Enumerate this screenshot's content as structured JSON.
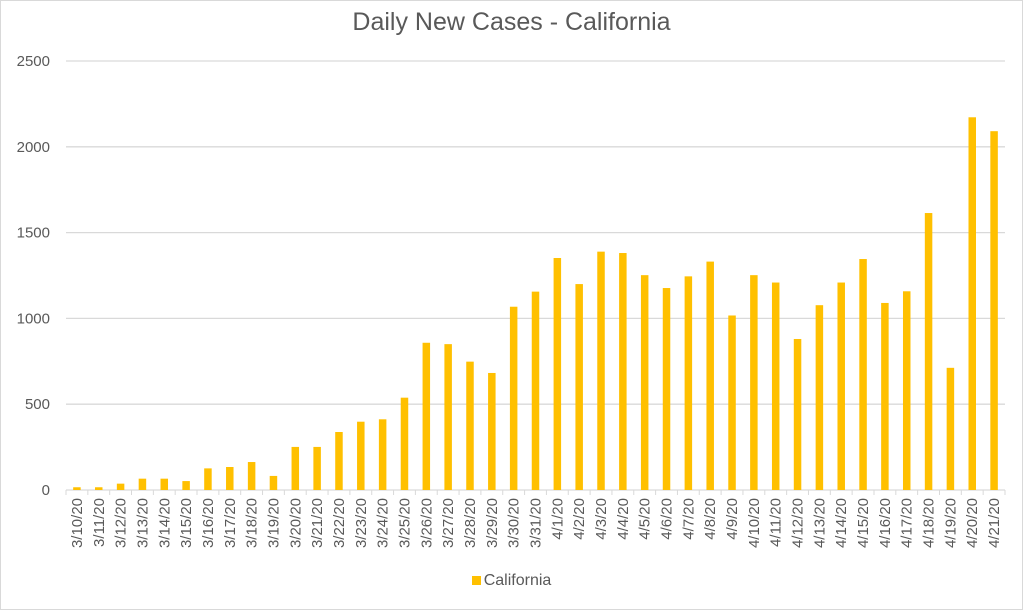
{
  "chart_data": {
    "type": "bar",
    "title": "Daily New Cases - California",
    "xlabel": "",
    "ylabel": "",
    "ylim": [
      0,
      2500
    ],
    "yticks": [
      0,
      500,
      1000,
      1500,
      2000,
      2500
    ],
    "grid": true,
    "legend_position": "bottom",
    "color": "#ffc000",
    "categories": [
      "3/10/20",
      "3/11/20",
      "3/12/20",
      "3/13/20",
      "3/14/20",
      "3/15/20",
      "3/16/20",
      "3/17/20",
      "3/18/20",
      "3/19/20",
      "3/20/20",
      "3/21/20",
      "3/22/20",
      "3/23/20",
      "3/24/20",
      "3/25/20",
      "3/26/20",
      "3/27/20",
      "3/28/20",
      "3/29/20",
      "3/30/20",
      "3/31/20",
      "4/1/20",
      "4/2/20",
      "4/3/20",
      "4/4/20",
      "4/5/20",
      "4/6/20",
      "4/7/20",
      "4/8/20",
      "4/9/20",
      "4/10/20",
      "4/11/20",
      "4/12/20",
      "4/13/20",
      "4/14/20",
      "4/15/20",
      "4/16/20",
      "4/17/20",
      "4/18/20",
      "4/19/20",
      "4/20/20",
      "4/21/20"
    ],
    "series": [
      {
        "name": "California",
        "values": [
          16,
          16,
          37,
          66,
          66,
          52,
          126,
          134,
          163,
          82,
          251,
          251,
          338,
          398,
          412,
          538,
          858,
          850,
          748,
          682,
          1068,
          1156,
          1352,
          1200,
          1389,
          1381,
          1252,
          1177,
          1245,
          1331,
          1017,
          1252,
          1209,
          880,
          1077,
          1209,
          1346,
          1090,
          1158,
          1614,
          712,
          2172,
          2091
        ]
      }
    ]
  }
}
